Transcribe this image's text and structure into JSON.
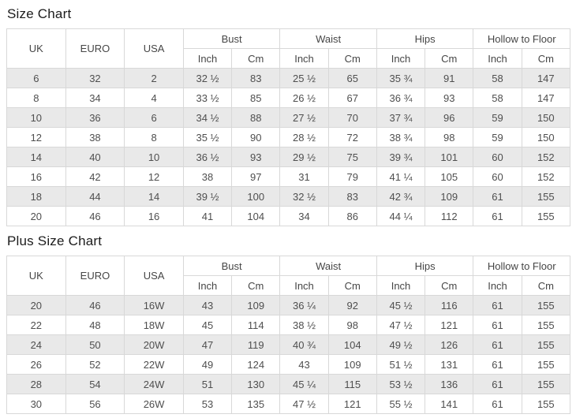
{
  "colors": {
    "row_shaded": "#e9e9e9",
    "row_white": "#ffffff",
    "border": "#d8d8d8",
    "header_text": "#464646",
    "cell_text": "#4f4f4f",
    "title_text": "#1c1c1c"
  },
  "columns": {
    "simple": [
      "UK",
      "EURO",
      "USA"
    ],
    "groups": [
      {
        "label": "Bust",
        "sub": [
          "Inch",
          "Cm"
        ]
      },
      {
        "label": "Waist",
        "sub": [
          "Inch",
          "Cm"
        ]
      },
      {
        "label": "Hips",
        "sub": [
          "Inch",
          "Cm"
        ]
      },
      {
        "label": "Hollow to Floor",
        "sub": [
          "Inch",
          "Cm"
        ]
      }
    ]
  },
  "size_chart": {
    "title": "Size Chart",
    "rows": [
      [
        "6",
        "32",
        "2",
        "32 ½",
        "83",
        "25 ½",
        "65",
        "35 ¾",
        "91",
        "58",
        "147"
      ],
      [
        "8",
        "34",
        "4",
        "33 ½",
        "85",
        "26 ½",
        "67",
        "36 ¾",
        "93",
        "58",
        "147"
      ],
      [
        "10",
        "36",
        "6",
        "34 ½",
        "88",
        "27 ½",
        "70",
        "37 ¾",
        "96",
        "59",
        "150"
      ],
      [
        "12",
        "38",
        "8",
        "35 ½",
        "90",
        "28 ½",
        "72",
        "38 ¾",
        "98",
        "59",
        "150"
      ],
      [
        "14",
        "40",
        "10",
        "36 ½",
        "93",
        "29 ½",
        "75",
        "39 ¾",
        "101",
        "60",
        "152"
      ],
      [
        "16",
        "42",
        "12",
        "38",
        "97",
        "31",
        "79",
        "41 ¼",
        "105",
        "60",
        "152"
      ],
      [
        "18",
        "44",
        "14",
        "39 ½",
        "100",
        "32 ½",
        "83",
        "42 ¾",
        "109",
        "61",
        "155"
      ],
      [
        "20",
        "46",
        "16",
        "41",
        "104",
        "34",
        "86",
        "44 ¼",
        "112",
        "61",
        "155"
      ]
    ]
  },
  "plus_size_chart": {
    "title": "Plus Size Chart",
    "rows": [
      [
        "20",
        "46",
        "16W",
        "43",
        "109",
        "36 ¼",
        "92",
        "45 ½",
        "116",
        "61",
        "155"
      ],
      [
        "22",
        "48",
        "18W",
        "45",
        "114",
        "38 ½",
        "98",
        "47 ½",
        "121",
        "61",
        "155"
      ],
      [
        "24",
        "50",
        "20W",
        "47",
        "119",
        "40 ¾",
        "104",
        "49 ½",
        "126",
        "61",
        "155"
      ],
      [
        "26",
        "52",
        "22W",
        "49",
        "124",
        "43",
        "109",
        "51 ½",
        "131",
        "61",
        "155"
      ],
      [
        "28",
        "54",
        "24W",
        "51",
        "130",
        "45 ¼",
        "115",
        "53 ½",
        "136",
        "61",
        "155"
      ],
      [
        "30",
        "56",
        "26W",
        "53",
        "135",
        "47 ½",
        "121",
        "55 ½",
        "141",
        "61",
        "155"
      ]
    ]
  }
}
